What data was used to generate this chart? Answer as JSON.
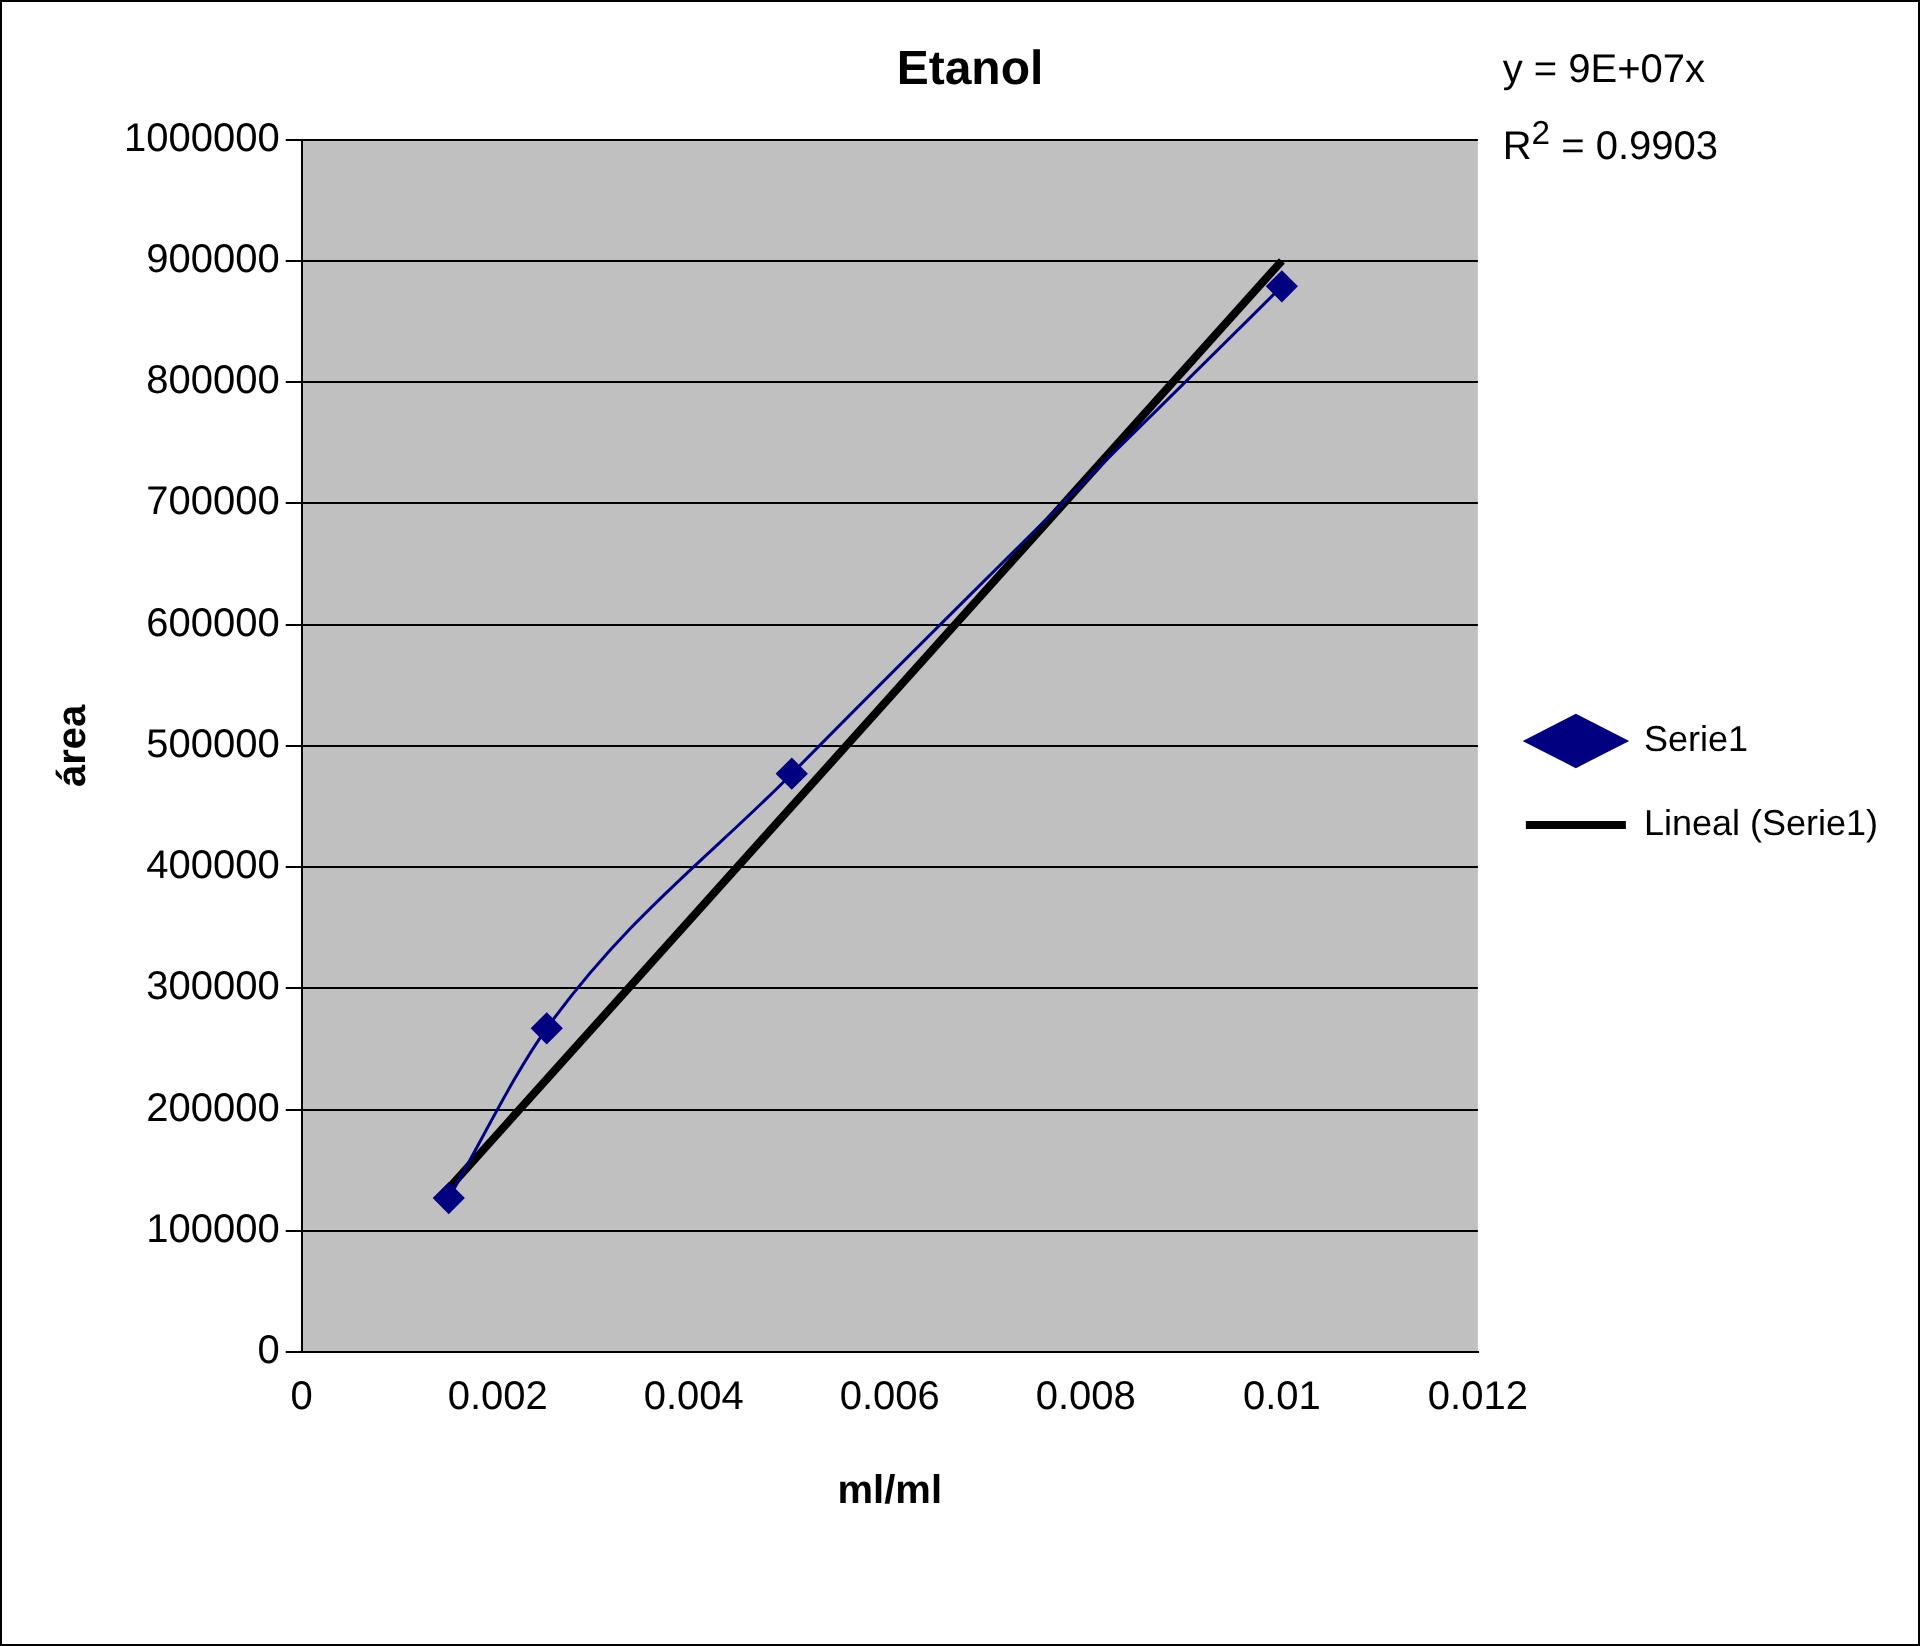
{
  "chart_data": {
    "type": "line",
    "title": "Etanol",
    "xlabel": "ml/ml",
    "ylabel": "área",
    "annotations": [
      "y = 9E+07x",
      "R$^{2}$ = 0.9903"
    ],
    "x": [
      0.0015,
      0.0025,
      0.005,
      0.01
    ],
    "series": [
      {
        "name": "Serie1",
        "color": "#000080",
        "values": [
          127000,
          267000,
          477000,
          879000
        ],
        "marker": "diamond"
      },
      {
        "name": "Lineal (Serie1)",
        "color": "#000000",
        "x": [
          0.0015,
          0.01
        ],
        "values": [
          135000,
          900000
        ],
        "marker": "none"
      }
    ],
    "xlim": [
      0,
      0.012
    ],
    "xticks": [
      0,
      0.002,
      0.004,
      0.006,
      0.008,
      0.01,
      0.012
    ],
    "ylim": [
      0,
      1000000
    ],
    "yticks": [
      0,
      100000,
      200000,
      300000,
      400000,
      500000,
      600000,
      700000,
      800000,
      900000,
      1000000
    ],
    "grid": "y",
    "legend": "right"
  }
}
